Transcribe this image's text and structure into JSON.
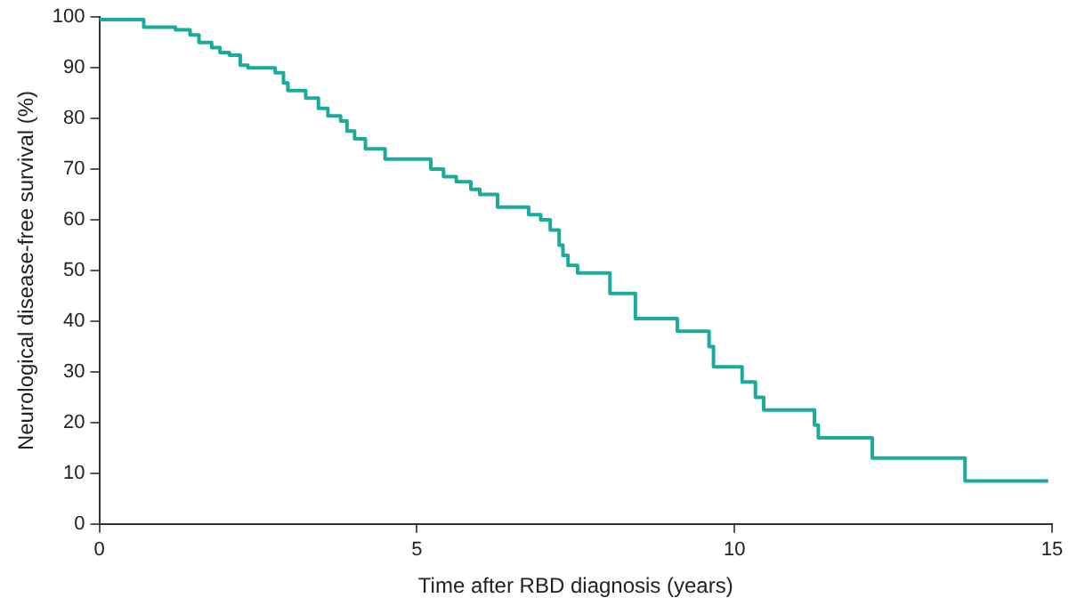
{
  "chart_data": {
    "type": "step",
    "xlabel": "Time after RBD diagnosis (years)",
    "ylabel": "Neurological disease-free survival (%)",
    "xlim": [
      0,
      15
    ],
    "xticks": [
      0,
      5,
      10,
      15
    ],
    "ylim": [
      0,
      100
    ],
    "yticks": [
      0,
      10,
      20,
      30,
      40,
      50,
      60,
      70,
      80,
      90,
      100
    ],
    "grid": false,
    "legend": false,
    "marker": "none",
    "series": [
      {
        "color": "#1aab9a",
        "x": [
          0,
          0.7,
          1.2,
          1.43,
          1.57,
          1.77,
          1.9,
          2.05,
          2.22,
          2.34,
          2.77,
          2.9,
          2.97,
          3.25,
          3.45,
          3.6,
          3.8,
          3.9,
          4.02,
          4.19,
          4.5,
          5.22,
          5.42,
          5.62,
          5.85,
          5.99,
          6.27,
          6.76,
          6.95,
          7.1,
          7.24,
          7.3,
          7.38,
          7.53,
          8.04,
          8.44,
          9.1,
          9.6,
          9.67,
          10.12,
          10.33,
          10.46,
          11.26,
          11.32,
          12.17,
          13.63,
          14.94
        ],
        "values": [
          99.5,
          98,
          97.5,
          96.5,
          95,
          94,
          93,
          92.5,
          90.5,
          90,
          89,
          87,
          85.5,
          84,
          82,
          80.5,
          79.5,
          77.5,
          76,
          74,
          72,
          70,
          68.5,
          67.5,
          66,
          65,
          62.5,
          61,
          60,
          58,
          55,
          53,
          51,
          49.5,
          45.5,
          40.5,
          38,
          35,
          31,
          28,
          25,
          22.5,
          19.5,
          17,
          13,
          8.5,
          8.5
        ]
      }
    ]
  }
}
